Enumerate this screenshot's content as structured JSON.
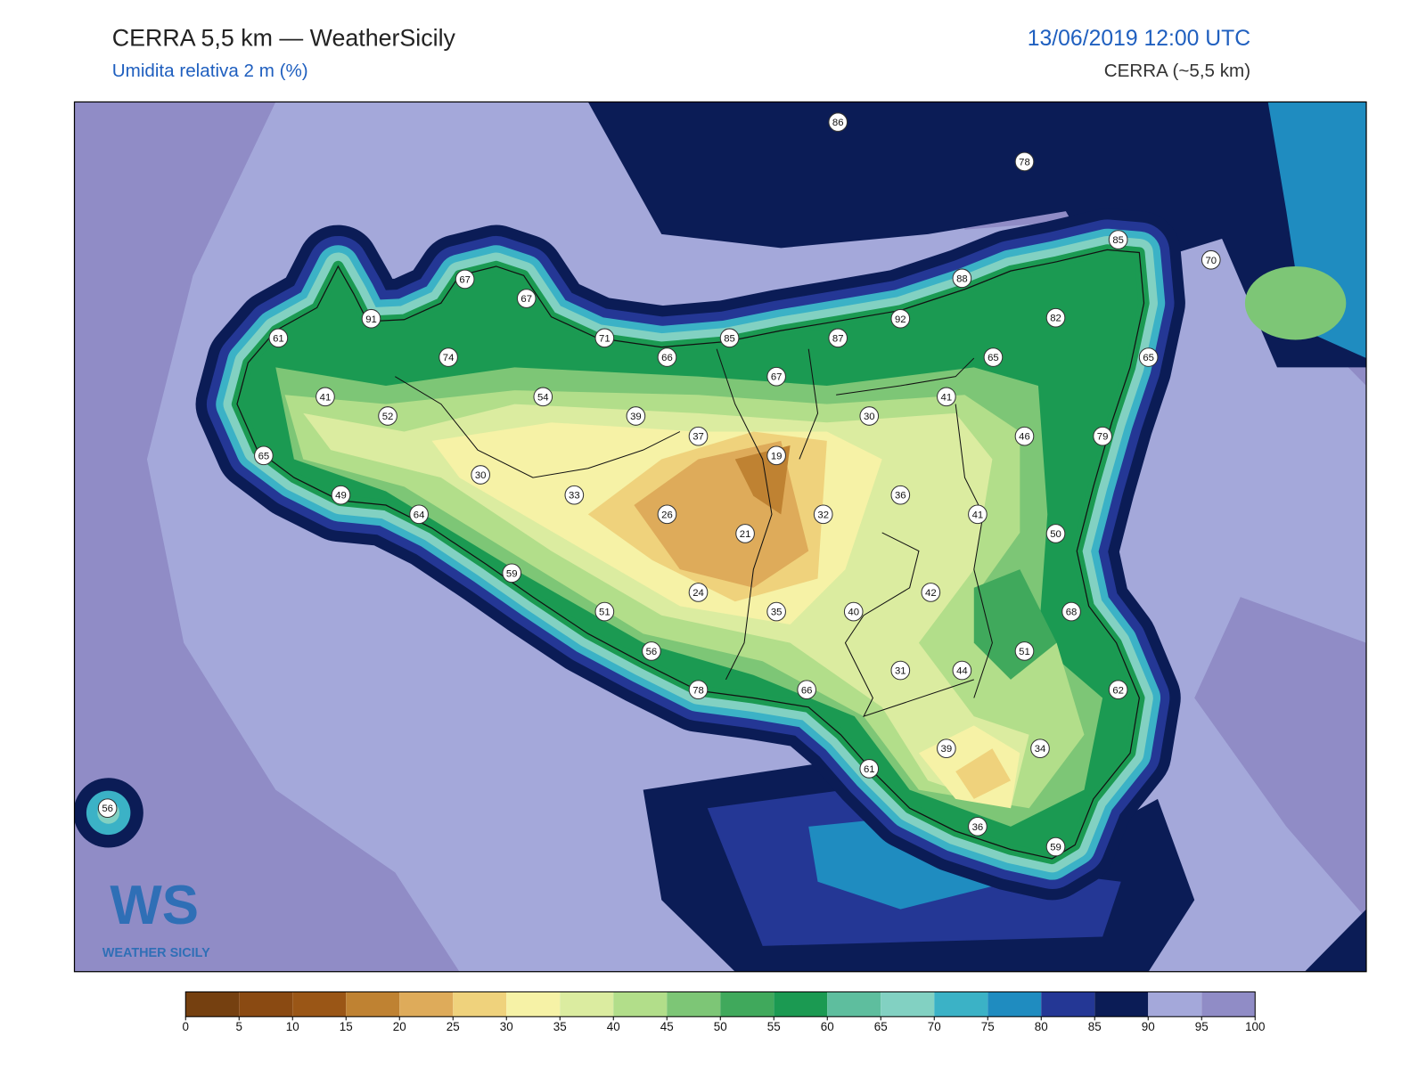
{
  "header": {
    "title": "CERRA 5,5 km — WeatherSicily",
    "subtitle": "Umidita relativa 2 m (%)",
    "datetime": "13/06/2019 12:00 UTC",
    "model": "CERRA (~5,5 km)"
  },
  "stations": [
    86,
    78,
    85,
    70,
    88,
    92,
    82,
    91,
    67,
    67,
    61,
    71,
    85,
    87,
    74,
    66,
    65,
    65,
    67,
    41,
    54,
    41,
    52,
    39,
    30,
    37,
    46,
    79,
    65,
    19,
    30,
    49,
    33,
    36,
    64,
    26,
    32,
    41,
    21,
    50,
    59,
    42,
    24,
    35,
    40,
    51,
    68,
    56,
    51,
    31,
    44,
    62,
    78,
    66,
    39,
    34,
    61,
    56,
    36,
    59
  ],
  "colorbar": {
    "ticks": [
      0,
      5,
      10,
      15,
      20,
      25,
      30,
      35,
      40,
      45,
      50,
      55,
      60,
      65,
      70,
      75,
      80,
      85,
      90,
      95,
      100
    ],
    "colors": [
      "#754010",
      "#8a4a12",
      "#9a5616",
      "#bf8232",
      "#deab5a",
      "#efd27c",
      "#f6f2a6",
      "#dbeca0",
      "#b2de8a",
      "#7dc676",
      "#40a95c",
      "#1b9a52",
      "#5ebe9e",
      "#82d1c2",
      "#3bb2c6",
      "#1f8cc0",
      "#243795",
      "#0b1c56",
      "#a4a8da",
      "#908cc6"
    ]
  },
  "logo": {
    "initials": "WS",
    "text": "WEATHER SICILY"
  }
}
